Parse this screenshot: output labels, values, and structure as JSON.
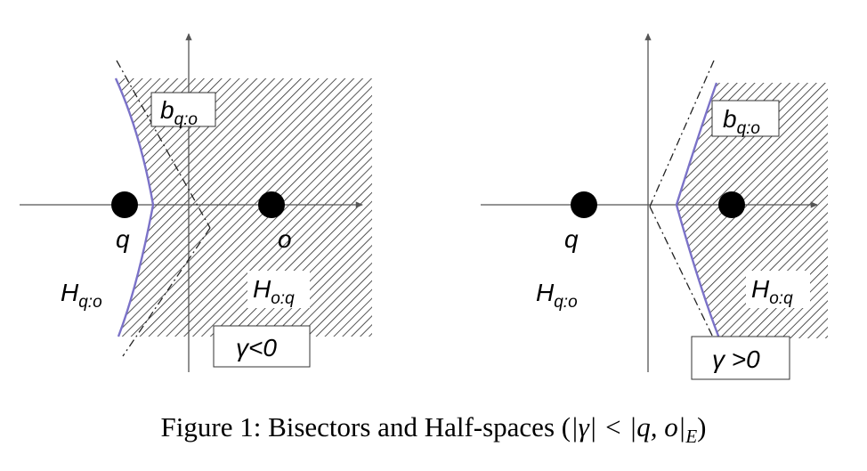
{
  "left_panel": {
    "point_q": "q",
    "point_o": "o",
    "bisector_label": {
      "base": "b",
      "sub": "q:o"
    },
    "halfspace_q": {
      "base": "H",
      "sub": "q:o"
    },
    "halfspace_o": {
      "base": "H",
      "sub": "o:q"
    },
    "gamma_label": "γ<0"
  },
  "right_panel": {
    "point_q": "q",
    "bisector_label": {
      "base": "b",
      "sub": "q:o"
    },
    "halfspace_q": {
      "base": "H",
      "sub": "q:o"
    },
    "halfspace_o": {
      "base": "H",
      "sub": "o:q"
    },
    "gamma_label": "γ >0"
  },
  "caption": {
    "text": "Figure 1: Bisectors and Half-spaces (",
    "math": "|γ| < |q, o|",
    "subscript": "E",
    "close": ")"
  },
  "colors": {
    "bisector": "#7b72c8",
    "hatch": "#222222",
    "axis": "#666666"
  }
}
